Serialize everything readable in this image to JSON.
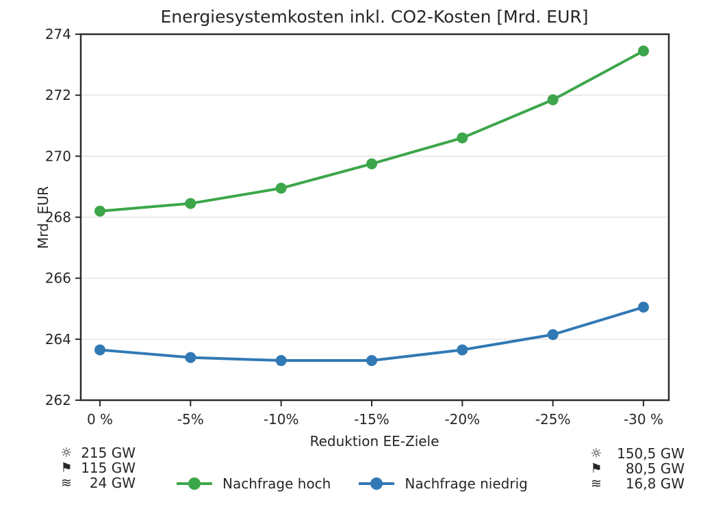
{
  "chart_data": {
    "type": "line",
    "title": "Energiesystemkosten inkl. CO2-Kosten [Mrd. EUR]",
    "xlabel": "Reduktion EE-Ziele",
    "ylabel": "Mrd. EUR",
    "categories": [
      "0 %",
      "-5%",
      "-10%",
      "-15%",
      "-20%",
      "-25%",
      "-30 %"
    ],
    "ylim": [
      262,
      274
    ],
    "yticks": [
      262,
      264,
      266,
      268,
      270,
      272,
      274
    ],
    "grid": true,
    "legend_position": "bottom-center",
    "series": [
      {
        "name": "Nachfrage hoch",
        "color": "#3CA64A",
        "values": [
          268.2,
          268.45,
          268.95,
          269.75,
          270.6,
          271.85,
          273.45
        ]
      },
      {
        "name": "Nachfrage niedrig",
        "color": "#3179B4",
        "values": [
          263.65,
          263.4,
          263.3,
          263.3,
          263.65,
          264.15,
          265.05
        ]
      }
    ]
  },
  "annotations": {
    "left": [
      {
        "icon": "sun-icon",
        "glyph": "☼",
        "value": "215 GW"
      },
      {
        "icon": "flag-icon",
        "glyph": "⚑",
        "value": "115 GW"
      },
      {
        "icon": "waves-icon",
        "glyph": "≋",
        "value": "24 GW"
      }
    ],
    "right": [
      {
        "icon": "sun-icon",
        "glyph": "☼",
        "value": "150,5 GW"
      },
      {
        "icon": "flag-icon",
        "glyph": "⚑",
        "value": "80,5 GW"
      },
      {
        "icon": "waves-icon",
        "glyph": "≋",
        "value": "16,8 GW"
      }
    ]
  },
  "colors": {
    "axis": "#2b2b2b",
    "grid": "#e3e3e3",
    "text": "#262626",
    "background": "#ffffff"
  }
}
